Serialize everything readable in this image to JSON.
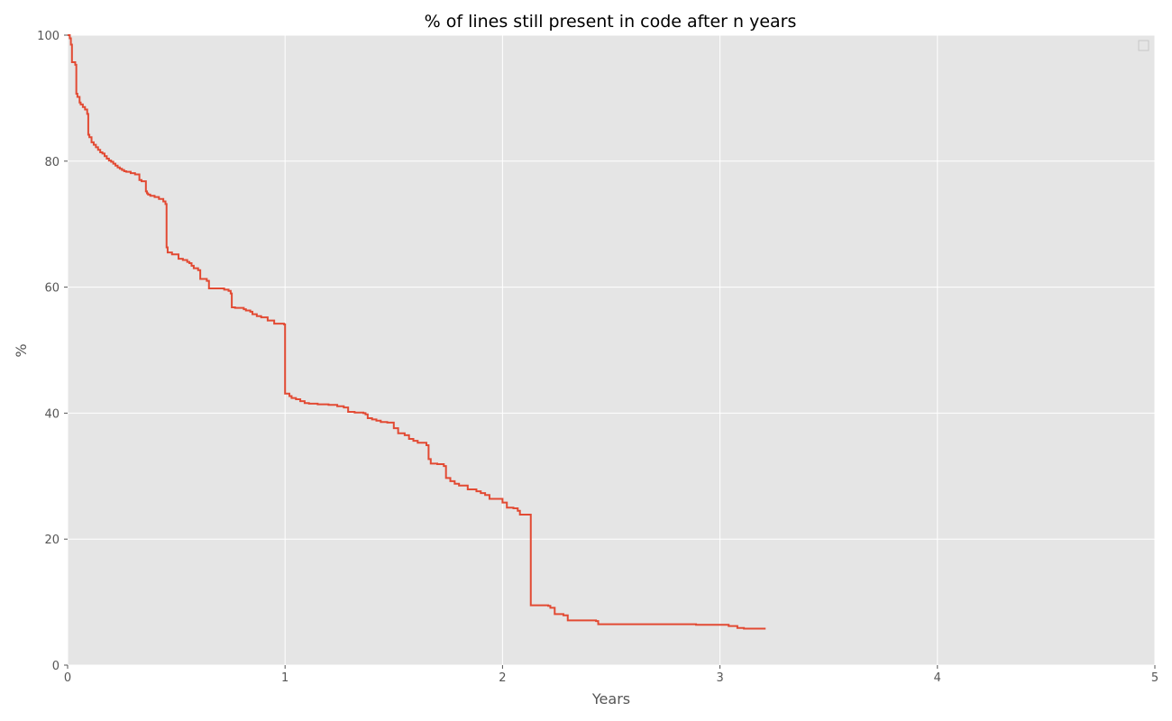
{
  "chart_data": {
    "type": "line",
    "title": "% of lines still present in code after n years",
    "xlabel": "Years",
    "ylabel": "%",
    "xlim": [
      0,
      5
    ],
    "ylim": [
      0,
      100
    ],
    "xticks": [
      "0",
      "1",
      "2",
      "3",
      "4",
      "5"
    ],
    "yticks": [
      "0",
      "20",
      "40",
      "60",
      "80",
      "100"
    ],
    "grid": true,
    "legend": "top-right, empty",
    "background_color": "#e5e5e5",
    "series": [
      {
        "color": "#e24a33",
        "step": true,
        "x": [
          0,
          0.01,
          0.015,
          0.02,
          0.035,
          0.04,
          0.045,
          0.055,
          0.06,
          0.07,
          0.08,
          0.09,
          0.095,
          0.1,
          0.11,
          0.12,
          0.13,
          0.14,
          0.15,
          0.16,
          0.17,
          0.18,
          0.19,
          0.2,
          0.21,
          0.22,
          0.23,
          0.24,
          0.25,
          0.26,
          0.27,
          0.29,
          0.31,
          0.33,
          0.34,
          0.36,
          0.365,
          0.37,
          0.38,
          0.4,
          0.42,
          0.44,
          0.45,
          0.455,
          0.46,
          0.48,
          0.51,
          0.53,
          0.55,
          0.56,
          0.57,
          0.58,
          0.6,
          0.61,
          0.64,
          0.65,
          0.72,
          0.74,
          0.75,
          0.755,
          0.77,
          0.81,
          0.82,
          0.84,
          0.85,
          0.87,
          0.89,
          0.92,
          0.95,
          0.995,
          1.0,
          1.02,
          1.03,
          1.05,
          1.07,
          1.09,
          1.11,
          1.15,
          1.2,
          1.24,
          1.27,
          1.29,
          1.32,
          1.36,
          1.37,
          1.38,
          1.4,
          1.42,
          1.44,
          1.47,
          1.5,
          1.52,
          1.55,
          1.57,
          1.59,
          1.61,
          1.65,
          1.66,
          1.67,
          1.7,
          1.73,
          1.74,
          1.76,
          1.78,
          1.8,
          1.84,
          1.88,
          1.9,
          1.92,
          1.94,
          2.0,
          2.02,
          2.05,
          2.07,
          2.08,
          2.13,
          2.21,
          2.22,
          2.24,
          2.28,
          2.3,
          2.43,
          2.44,
          2.89,
          3.04,
          3.08,
          3.11,
          3.21
        ],
        "y": [
          100,
          99.5,
          98.5,
          95.7,
          95.3,
          90.7,
          90.2,
          89.3,
          89,
          88.6,
          88.2,
          87.5,
          84.2,
          83.8,
          83,
          82.6,
          82.2,
          81.8,
          81.4,
          81.2,
          80.8,
          80.4,
          80.1,
          79.9,
          79.6,
          79.3,
          79.0,
          78.8,
          78.6,
          78.4,
          78.3,
          78.1,
          77.9,
          77.0,
          76.8,
          75.2,
          74.9,
          74.7,
          74.5,
          74.3,
          74.0,
          73.6,
          73.2,
          66.3,
          65.5,
          65.2,
          64.5,
          64.3,
          64.0,
          63.8,
          63.4,
          63.0,
          62.7,
          61.3,
          61.0,
          59.8,
          59.6,
          59.4,
          59.0,
          56.8,
          56.7,
          56.5,
          56.3,
          56.1,
          55.7,
          55.4,
          55.2,
          54.7,
          54.2,
          54.1,
          43.1,
          42.7,
          42.4,
          42.2,
          41.9,
          41.6,
          41.5,
          41.4,
          41.3,
          41.1,
          40.9,
          40.2,
          40.1,
          40.0,
          39.8,
          39.2,
          39.0,
          38.8,
          38.6,
          38.5,
          37.6,
          36.8,
          36.5,
          35.9,
          35.6,
          35.3,
          34.9,
          32.7,
          32.0,
          31.9,
          31.6,
          29.7,
          29.2,
          28.8,
          28.5,
          27.9,
          27.6,
          27.3,
          27.0,
          26.4,
          25.8,
          25.0,
          24.9,
          24.5,
          23.9,
          9.5,
          9.4,
          9.1,
          8.1,
          7.9,
          7.1,
          7.0,
          6.5,
          6.4,
          6.2,
          5.9,
          5.8,
          5.8
        ]
      }
    ]
  }
}
